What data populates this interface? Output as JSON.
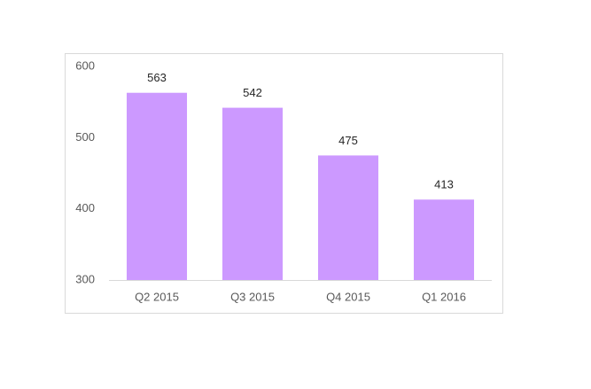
{
  "chart_data": {
    "type": "bar",
    "categories": [
      "Q2 2015",
      "Q3 2015",
      "Q4 2015",
      "Q1 2016"
    ],
    "values": [
      563,
      542,
      475,
      413
    ],
    "color": "#cc99ff",
    "ylim": [
      300,
      600
    ],
    "yticks": [
      300,
      400,
      500,
      600
    ],
    "grid": false,
    "data_labels": true
  }
}
